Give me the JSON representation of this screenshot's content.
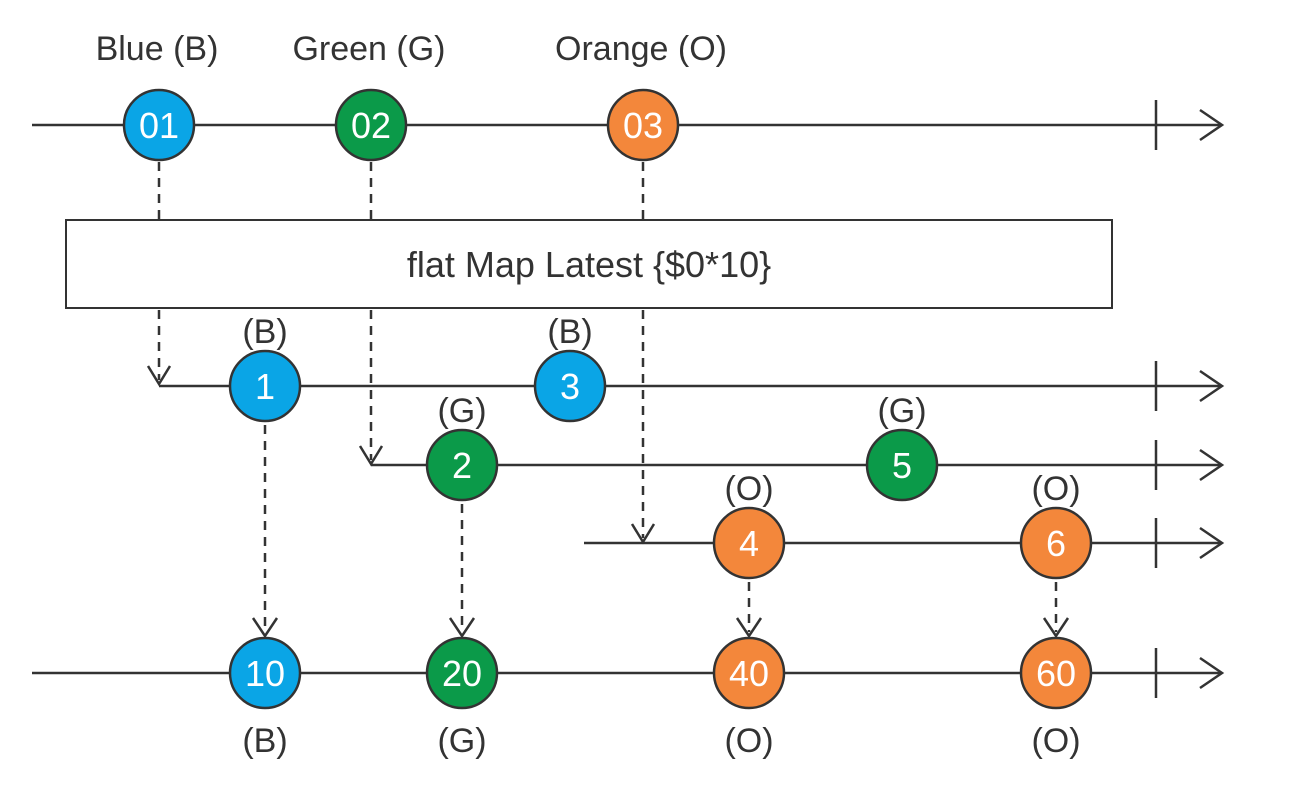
{
  "colors": {
    "blue": "#0aa5e6",
    "green": "#0b9a49",
    "orange": "#f3873b"
  },
  "source": {
    "labels": [
      "Blue (B)",
      "Green (G)",
      "Orange (O)"
    ],
    "marbles": [
      {
        "text": "01",
        "color": "blue"
      },
      {
        "text": "02",
        "color": "green"
      },
      {
        "text": "03",
        "color": "orange"
      }
    ]
  },
  "operator": {
    "text": "flat Map Latest {$0*10}"
  },
  "inner_streams": {
    "blue": {
      "marbles": [
        {
          "text": "1",
          "tag": "(B)"
        },
        {
          "text": "3",
          "tag": "(B)"
        }
      ]
    },
    "green": {
      "marbles": [
        {
          "text": "2",
          "tag": "(G)"
        },
        {
          "text": "5",
          "tag": "(G)"
        }
      ]
    },
    "orange": {
      "marbles": [
        {
          "text": "4",
          "tag": "(O)"
        },
        {
          "text": "6",
          "tag": "(O)"
        }
      ]
    }
  },
  "output": {
    "marbles": [
      {
        "text": "10",
        "tag": "(B)",
        "color": "blue"
      },
      {
        "text": "20",
        "tag": "(G)",
        "color": "green"
      },
      {
        "text": "40",
        "tag": "(O)",
        "color": "orange"
      },
      {
        "text": "60",
        "tag": "(O)",
        "color": "orange"
      }
    ]
  }
}
